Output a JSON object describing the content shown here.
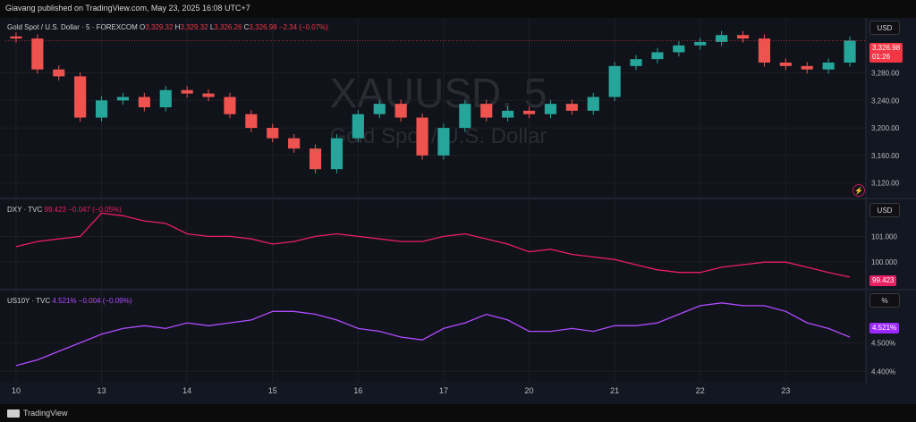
{
  "header": {
    "published": "Giavang published on TradingView.com, May 23, 2025 16:08 UTC+7"
  },
  "footer": {
    "brand": "TradingView"
  },
  "legends": {
    "gold": {
      "name": "Gold Spot / U.S. Dollar · 5 · FOREXCOM",
      "o_label": "O",
      "o": "3,329.32",
      "h_label": "H",
      "h": "3,329.32",
      "l_label": "L",
      "l": "3,326.26",
      "c_label": "C",
      "c": "3,326.98",
      "chg": "−2.34 (−0.07%)"
    },
    "dxy": {
      "name": "DXY · TVC",
      "value": "99.423",
      "chg": "−0.047 (−0.05%)"
    },
    "us10y": {
      "name": "US10Y · TVC",
      "value": "4.521%",
      "chg": "−0.004 (−0.09%)"
    }
  },
  "scale_buttons": {
    "gold": "USD",
    "dxy": "USD",
    "us10y": "%"
  },
  "watermark": {
    "symbol": "XAUUSD, 5",
    "desc": "Gold Spot / U.S. Dollar"
  },
  "last_labels": {
    "gold_price": "3,326.98",
    "gold_timer": "01:26",
    "dxy": "99.423",
    "us10y": "4.521%"
  },
  "colors": {
    "up": "#26a69a",
    "down": "#ef5350",
    "dxy": "#e91e63",
    "us10y": "#b14bff",
    "grid": "#1f1f24",
    "text": "#bdbdbd"
  },
  "icons": {
    "bolt": "lightning-icon"
  },
  "chart_data": [
    {
      "type": "candlestick",
      "symbol": "XAUUSD",
      "title": "Gold Spot / U.S. Dollar",
      "timeframe": "5",
      "x": [
        "10",
        "10",
        "10",
        "10",
        "13",
        "13",
        "13",
        "13",
        "14",
        "14",
        "14",
        "14",
        "15",
        "15",
        "15",
        "15",
        "16",
        "16",
        "16",
        "16",
        "17",
        "17",
        "17",
        "17",
        "20",
        "20",
        "20",
        "20",
        "21",
        "21",
        "21",
        "21",
        "22",
        "22",
        "22",
        "22",
        "23",
        "23",
        "23",
        "23"
      ],
      "x_ticks": [
        "10",
        "13",
        "14",
        "15",
        "16",
        "17",
        "20",
        "21",
        "22",
        "23"
      ],
      "close": [
        3330,
        3285,
        3275,
        3215,
        3240,
        3245,
        3230,
        3255,
        3250,
        3245,
        3220,
        3200,
        3185,
        3170,
        3140,
        3185,
        3220,
        3235,
        3215,
        3160,
        3200,
        3235,
        3215,
        3225,
        3220,
        3235,
        3225,
        3245,
        3290,
        3300,
        3310,
        3320,
        3325,
        3335,
        3330,
        3295,
        3290,
        3285,
        3295,
        3326.98
      ],
      "ylim": [
        3100,
        3360
      ],
      "y_ticks": [
        "3,120.00",
        "3,160.00",
        "3,200.00",
        "3,240.00",
        "3,280.00"
      ],
      "last": 3326.98
    },
    {
      "type": "line",
      "symbol": "DXY",
      "name": "DXY · TVC",
      "values": [
        100.6,
        100.8,
        100.9,
        101.0,
        101.9,
        101.8,
        101.6,
        101.5,
        101.1,
        101.0,
        101.0,
        100.9,
        100.7,
        100.8,
        101.0,
        101.1,
        101.0,
        100.9,
        100.8,
        100.8,
        101.0,
        101.1,
        100.9,
        100.7,
        100.4,
        100.5,
        100.3,
        100.2,
        100.1,
        99.9,
        99.7,
        99.6,
        99.6,
        99.8,
        99.9,
        100.0,
        100.0,
        99.8,
        99.6,
        99.42
      ],
      "ylim": [
        99.0,
        102.4
      ],
      "y_ticks": [
        "100.000",
        "101.000"
      ],
      "last": 99.423
    },
    {
      "type": "line",
      "symbol": "US10Y",
      "name": "US10Y · TVC",
      "values": [
        4.42,
        4.44,
        4.47,
        4.5,
        4.53,
        4.55,
        4.56,
        4.55,
        4.57,
        4.56,
        4.57,
        4.58,
        4.61,
        4.61,
        4.6,
        4.58,
        4.55,
        4.54,
        4.52,
        4.51,
        4.55,
        4.57,
        4.6,
        4.58,
        4.54,
        4.54,
        4.55,
        4.54,
        4.56,
        4.56,
        4.57,
        4.6,
        4.63,
        4.64,
        4.63,
        4.63,
        4.61,
        4.57,
        4.55,
        4.52
      ],
      "ylim": [
        4.36,
        4.68
      ],
      "y_ticks": [
        "4.400%",
        "4.500%"
      ],
      "last": 4.521
    }
  ]
}
